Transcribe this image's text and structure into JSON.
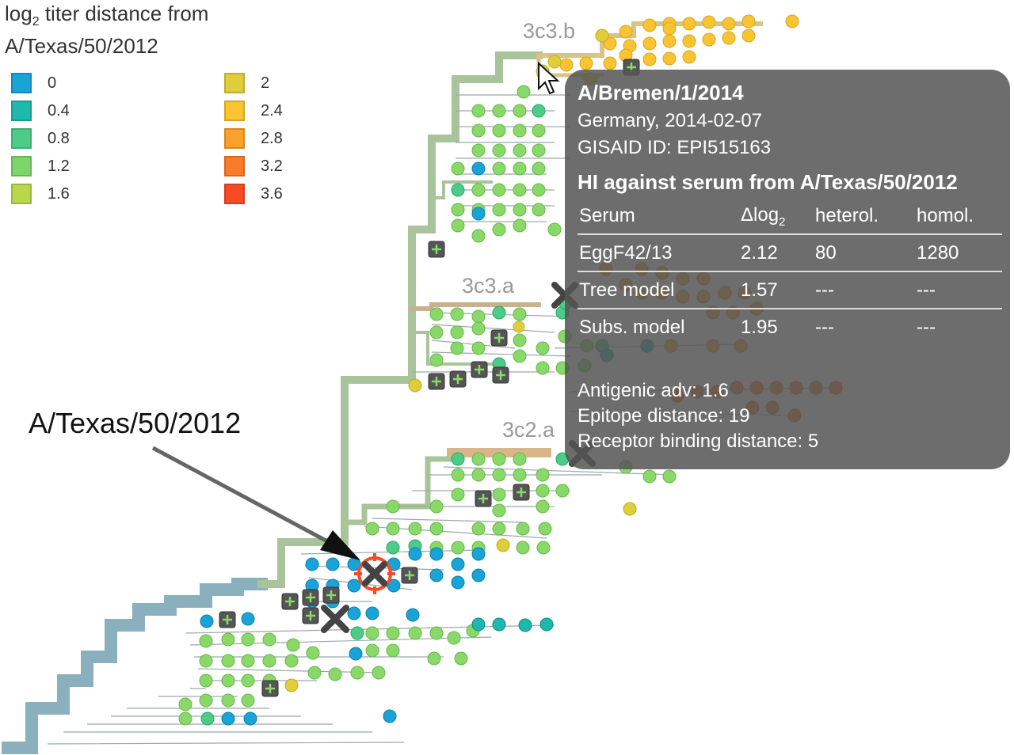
{
  "legend": {
    "title_line1": "log",
    "title_sub": "2",
    "title_line1_rest": " titer distance from",
    "title_line2": "A/Texas/50/2012",
    "items": [
      {
        "label": "0",
        "color": "#1aa3d6"
      },
      {
        "label": "0.4",
        "color": "#1fb8ad"
      },
      {
        "label": "0.8",
        "color": "#4ccc88"
      },
      {
        "label": "1.2",
        "color": "#7fd46a"
      },
      {
        "label": "1.6",
        "color": "#b8d84a"
      },
      {
        "label": "2",
        "color": "#e0cd3c"
      },
      {
        "label": "2.4",
        "color": "#f9c432"
      },
      {
        "label": "2.8",
        "color": "#f9a22b"
      },
      {
        "label": "3.2",
        "color": "#f97c2a"
      },
      {
        "label": "3.6",
        "color": "#f64b24"
      }
    ]
  },
  "clades": {
    "c3c3b": "3c3.b",
    "c3c3a": "3c3.a",
    "c3c2a": "3c2.a"
  },
  "annotation": "A/Texas/50/2012",
  "tooltip": {
    "name": "A/Bremen/1/2014",
    "location_date": "Germany, 2014-02-07",
    "gisaid": "GISAID ID: EPI515163",
    "hi_title": "HI against serum from A/Texas/50/2012",
    "table": {
      "headers": {
        "serum": "Serum",
        "dlog": "Δlog",
        "dlog_sub": "2",
        "heterol": "heterol.",
        "homol": "homol."
      },
      "rows": [
        {
          "serum": "EggF42/13",
          "dlog": "2.12",
          "heterol": "80",
          "homol": "1280"
        },
        {
          "serum": "Tree model",
          "dlog": "1.57",
          "heterol": "---",
          "homol": "---"
        },
        {
          "serum": "Subs. model",
          "dlog": "1.95",
          "heterol": "---",
          "homol": "---"
        }
      ]
    },
    "antigenic": "Antigenic adv: 1.6",
    "epitope": "Epitope distance: 19",
    "receptor": "Receptor binding distance: 5"
  }
}
